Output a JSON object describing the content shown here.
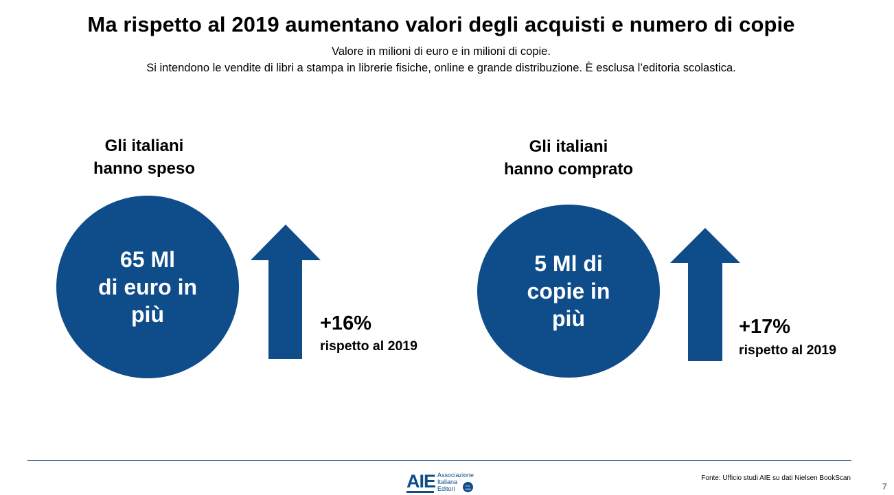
{
  "title": "Ma rispetto al 2019 aumentano valori degli acquisti e numero di copie",
  "subtitle_line1": "Valore in milioni di euro e in milioni di copie.",
  "subtitle_line2": "Si intendono le vendite di libri a stampa in librerie fisiche, online e grande distribuzione. È esclusa l’editoria scolastica.",
  "panels": [
    {
      "heading_line1": "Gli italiani",
      "heading_line2": "hanno speso",
      "circle_line1": "65 Ml",
      "circle_line2": "di euro in",
      "circle_line3": "più",
      "percent": "+16%",
      "comparison": "rispetto al 2019"
    },
    {
      "heading_line1": "Gli italiani",
      "heading_line2": "hanno comprato",
      "circle_line1": "5 Ml di",
      "circle_line2": "copie in",
      "circle_line3": "più",
      "percent": "+17%",
      "comparison": "rispetto al 2019"
    }
  ],
  "footer": {
    "logo_mark": "AIE",
    "logo_line1": "Associazione",
    "logo_line2": "Italiana",
    "logo_line3": "Editori",
    "logo_seal_text": "Est. 1869",
    "source": "Fonte: Ufficio studi AIE su dati Nielsen BookScan",
    "page_number": "7"
  },
  "colors": {
    "accent": "#0f4c8a",
    "text": "#000000",
    "page_number": "#888888"
  }
}
